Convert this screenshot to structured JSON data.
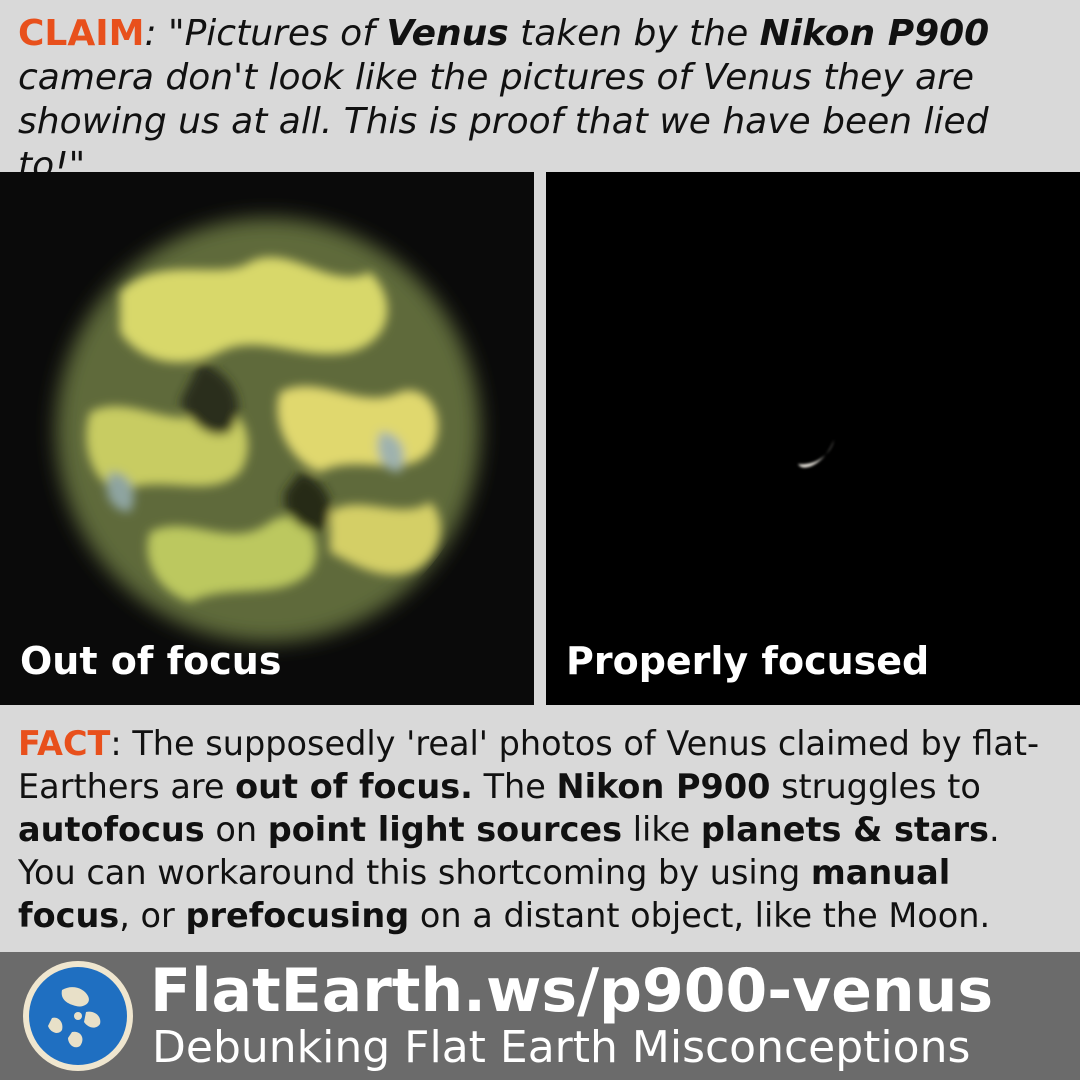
{
  "claim": {
    "tag": "CLAIM",
    "colon": ":",
    "q1": " \"Pictures of ",
    "b1": "Venus",
    "q2": " taken by the ",
    "b2": "Nikon P900",
    "q3": " camera don't look like the pictures of Venus they are showing us at all. This is proof that we have been lied to!\""
  },
  "panels": {
    "left_caption": "Out of focus",
    "right_caption": "Properly focused"
  },
  "fact": {
    "tag": "FACT",
    "t1": ": The supposedly 'real' photos of Venus claimed by flat-Earthers are ",
    "b1": "out of focus.",
    "t2": " The ",
    "b2": "Nikon P900",
    "t3": " struggles to ",
    "b3": "autofocus",
    "t4": " on ",
    "b4": "point light sources",
    "t5": " like ",
    "b5": "planets & stars",
    "t6": ". You can workaround this shortcoming by using ",
    "b6": "manual focus",
    "t7": ", or ",
    "b7": "prefocusing",
    "t8": " on a distant object, like the Moon."
  },
  "footer": {
    "url": "FlatEarth.ws/p900-venus",
    "tagline": "Debunking Flat Earth Misconceptions"
  },
  "colors": {
    "accent": "#e8501c",
    "background": "#d9d9d9",
    "footer_bg": "#6b6b6b"
  }
}
